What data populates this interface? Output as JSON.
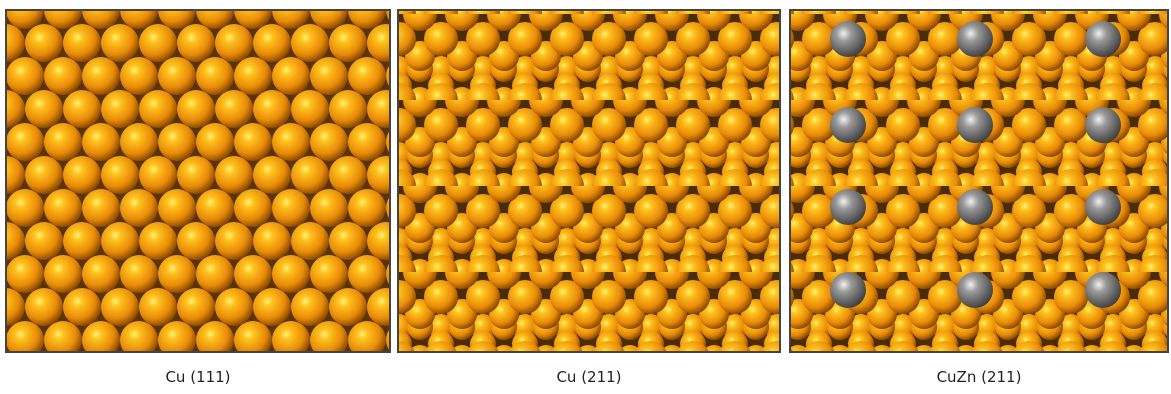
{
  "panels": [
    {
      "label": "Cu (111)"
    },
    {
      "label": "Cu (211)"
    },
    {
      "label": "CuZn (211)"
    }
  ]
}
